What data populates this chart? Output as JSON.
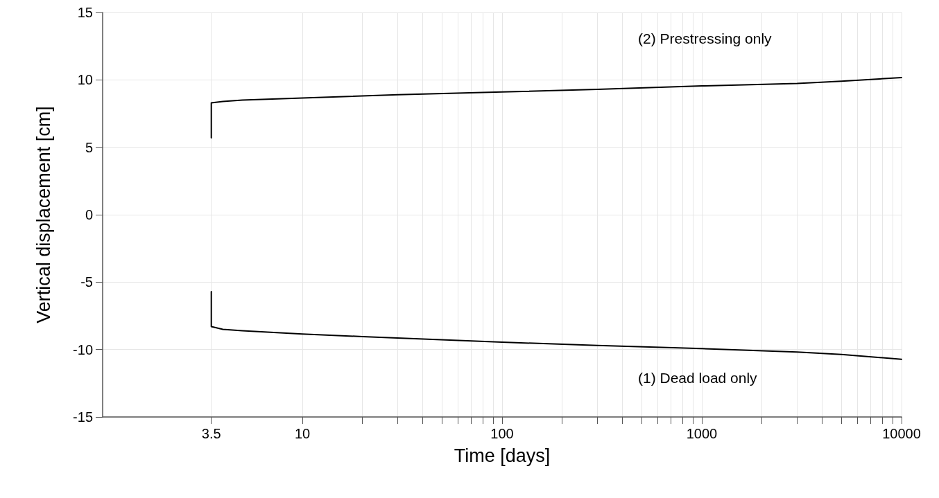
{
  "chart_data": {
    "type": "line",
    "xlabel": "Time [days]",
    "ylabel": "Vertical displacement [cm]",
    "log": "x",
    "xlim": [
      1,
      10000
    ],
    "xticks": [
      3.5,
      10,
      {
        "value": 20,
        "label": null
      },
      {
        "value": 30,
        "label": null
      },
      {
        "value": 40,
        "label": null
      },
      {
        "value": 50,
        "label": null
      },
      {
        "value": 60,
        "label": null
      },
      {
        "value": 70,
        "label": null
      },
      {
        "value": 80,
        "label": null
      },
      {
        "value": 90,
        "label": null
      },
      100,
      {
        "value": 200,
        "label": null
      },
      {
        "value": 300,
        "label": null
      },
      {
        "value": 400,
        "label": null
      },
      {
        "value": 500,
        "label": null
      },
      {
        "value": 600,
        "label": null
      },
      {
        "value": 700,
        "label": null
      },
      {
        "value": 800,
        "label": null
      },
      {
        "value": 900,
        "label": null
      },
      1000,
      {
        "value": 2000,
        "label": null
      },
      {
        "value": 3000,
        "label": null
      },
      {
        "value": 4000,
        "label": null
      },
      {
        "value": 5000,
        "label": null
      },
      {
        "value": 6000,
        "label": null
      },
      {
        "value": 7000,
        "label": null
      },
      {
        "value": 8000,
        "label": null
      },
      {
        "value": 9000,
        "label": null
      },
      10000
    ],
    "ylim": [
      -15,
      15
    ],
    "yticks": [
      -15,
      -10,
      -5,
      0,
      5,
      10,
      15
    ],
    "grid": true,
    "marker": "none",
    "line_style": "solid",
    "series": [
      {
        "color": "#000000",
        "x": [
          3.5,
          3.5,
          4,
          5,
          10,
          30,
          100,
          300,
          1000,
          3000,
          5000,
          10000
        ],
        "values": [
          5.7,
          8.3,
          8.4,
          8.5,
          8.65,
          8.9,
          9.1,
          9.3,
          9.55,
          9.73,
          9.9,
          10.17
        ]
      },
      {
        "color": "#000000",
        "x": [
          3.5,
          3.5,
          4,
          5,
          10,
          20,
          100,
          300,
          1000,
          3000,
          5000,
          10000
        ],
        "values": [
          -5.7,
          -8.3,
          -8.5,
          -8.6,
          -8.85,
          -9.04,
          -9.45,
          -9.7,
          -9.93,
          -10.19,
          -10.36,
          -10.72
        ]
      }
    ],
    "annotations": [
      "(2) Prestressing only",
      "(1) Dead load only"
    ]
  }
}
